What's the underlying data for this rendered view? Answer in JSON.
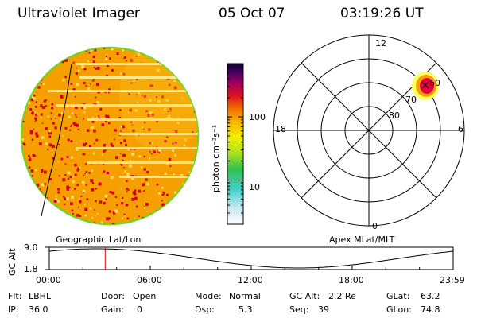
{
  "header": {
    "instrument": "Ultraviolet Imager",
    "date": "05 Oct 07",
    "time": "03:19:26 UT"
  },
  "colorbar": {
    "unit_label": "photon cm⁻²s⁻¹",
    "ticks": [
      {
        "value": 100,
        "label": "100"
      },
      {
        "value": 10,
        "label": "10"
      }
    ],
    "scale": "log",
    "range": [
      2,
      700
    ]
  },
  "polar_plot": {
    "mlt_labels": {
      "top": "12",
      "bottom": "0",
      "left": "18",
      "right": "6"
    },
    "mlat_labels": [
      "60",
      "70",
      "80"
    ],
    "coordinate_system": "Apex MLat/MLT"
  },
  "image_panel": {
    "coordinate_system": "Geographic Lat/Lon"
  },
  "orbit_plot": {
    "ylabel": "GC Alt",
    "ytick_top": "9.0",
    "ytick_bottom": "1.8",
    "xtick_labels": [
      "00:00",
      "06:00",
      "12:00",
      "18:00",
      "23:59"
    ],
    "marker_time_hours": 3.32,
    "marker_color": "#e00000",
    "altitude_curve_color": "#000000"
  },
  "info": {
    "flt_label": "Flt:",
    "flt_value": "LBHL",
    "ip_label": "IP:",
    "ip_value": "36.0",
    "door_label": "Door:",
    "door_value": "Open",
    "gain_label": "Gain:",
    "gain_value": "0",
    "mode_label": "Mode:",
    "mode_value": "Normal",
    "dsp_label": "Dsp:",
    "dsp_value": "5.3",
    "gcalt_label": "GC Alt:",
    "gcalt_value": "2.2 Re",
    "seq_label": "Seq:",
    "seq_value": "39",
    "glat_label": "GLat:",
    "glat_value": "63.2",
    "glon_label": "GLon:",
    "glon_value": "74.8"
  },
  "colors": {
    "disk_base": "#f5a000",
    "disk_red": "#d40020",
    "disk_yellow": "#f8e060",
    "disk_rim": "#7ad020",
    "auroral_spot": "#e80040"
  }
}
